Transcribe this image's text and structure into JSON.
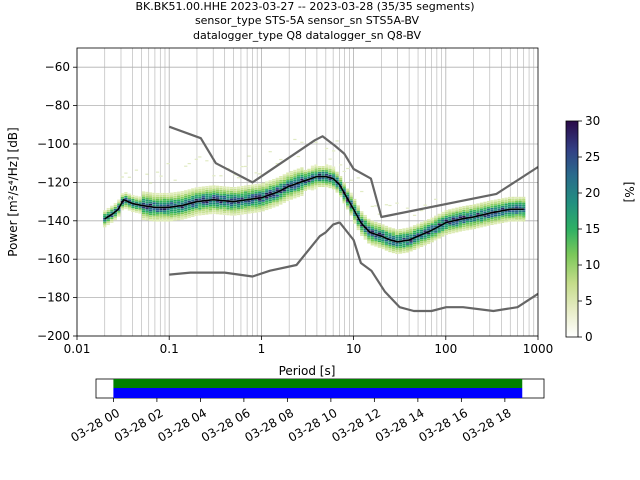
{
  "title": {
    "line1": "BK.BK51.00.HHE   2023-03-27 -- 2023-03-28  (35/35 segments)",
    "line2": "sensor_type STS-5A sensor_sn STS5A-BV",
    "line3": "datalogger_type Q8 datalogger_sn Q8-BV"
  },
  "chart_data": [
    {
      "type": "heatmap",
      "xlabel": "Period [s]",
      "ylabel": "Power [m²/s⁴/Hz] [dB]",
      "xscale": "log",
      "xlim": [
        0.01,
        1000
      ],
      "ylim": [
        -200,
        -50
      ],
      "grid": true,
      "x_tick_labels": [
        "0.01",
        "0.1",
        "1",
        "10",
        "100",
        "1000"
      ],
      "x_ticks": [
        0.01,
        0.1,
        1,
        10,
        100,
        1000
      ],
      "y_ticks": [
        -200,
        -180,
        -160,
        -140,
        -120,
        -100,
        -80,
        -60
      ],
      "y_tick_labels": [
        "−200",
        "−180",
        "−160",
        "−140",
        "−120",
        "−100",
        "−80",
        "−60"
      ],
      "colorbar": {
        "label": "[%]",
        "min": 0,
        "max": 30,
        "ticks": [
          0,
          5,
          10,
          15,
          20,
          25,
          30
        ]
      },
      "series": [
        {
          "role": "mode",
          "color": "#000000",
          "points": [
            [
              0.02,
              -139
            ],
            [
              0.025,
              -136
            ],
            [
              0.028,
              -134
            ],
            [
              0.032,
              -129
            ],
            [
              0.04,
              -131
            ],
            [
              0.05,
              -132
            ],
            [
              0.07,
              -133
            ],
            [
              0.1,
              -133
            ],
            [
              0.14,
              -132
            ],
            [
              0.2,
              -130
            ],
            [
              0.3,
              -129
            ],
            [
              0.5,
              -130
            ],
            [
              0.7,
              -129
            ],
            [
              1,
              -128
            ],
            [
              1.5,
              -125
            ],
            [
              2,
              -122
            ],
            [
              3,
              -119
            ],
            [
              4,
              -117
            ],
            [
              5,
              -117
            ],
            [
              6,
              -118
            ],
            [
              7,
              -121
            ],
            [
              8,
              -126
            ],
            [
              10,
              -134
            ],
            [
              12,
              -141
            ],
            [
              15,
              -146
            ],
            [
              20,
              -148
            ],
            [
              25,
              -150
            ],
            [
              30,
              -151
            ],
            [
              40,
              -150
            ],
            [
              50,
              -148
            ],
            [
              70,
              -145
            ],
            [
              100,
              -141
            ],
            [
              150,
              -139
            ],
            [
              200,
              -138
            ],
            [
              300,
              -136
            ],
            [
              500,
              -134
            ],
            [
              700,
              -134
            ]
          ]
        },
        {
          "role": "new-high-noise-model",
          "color": "#666666",
          "points": [
            [
              0.1,
              -91
            ],
            [
              0.22,
              -97
            ],
            [
              0.32,
              -110
            ],
            [
              0.8,
              -120
            ],
            [
              3.8,
              -98
            ],
            [
              4.6,
              -96
            ],
            [
              6.3,
              -101
            ],
            [
              7.9,
              -105
            ],
            [
              10,
              -113
            ],
            [
              15.4,
              -118
            ],
            [
              20,
              -138
            ],
            [
              354,
              -126
            ],
            [
              1000,
              -112
            ]
          ]
        },
        {
          "role": "new-low-noise-model",
          "color": "#666666",
          "points": [
            [
              0.1,
              -168
            ],
            [
              0.17,
              -167
            ],
            [
              0.4,
              -167
            ],
            [
              0.8,
              -169
            ],
            [
              1.24,
              -166
            ],
            [
              2.4,
              -163
            ],
            [
              4.3,
              -148
            ],
            [
              5,
              -146
            ],
            [
              6,
              -142
            ],
            [
              6.9,
              -141
            ],
            [
              7.1,
              -141
            ],
            [
              10,
              -150
            ],
            [
              12,
              -162
            ],
            [
              15.6,
              -166
            ],
            [
              21.9,
              -177
            ],
            [
              31.6,
              -185
            ],
            [
              45,
              -187
            ],
            [
              70,
              -187
            ],
            [
              101,
              -185
            ],
            [
              154,
              -185
            ],
            [
              328,
              -187
            ],
            [
              600,
              -185
            ],
            [
              1000,
              -178
            ]
          ]
        }
      ]
    },
    {
      "type": "bar",
      "role": "data-coverage",
      "x_tick_labels": [
        "03-28 00",
        "03-28 02",
        "03-28 04",
        "03-28 06",
        "03-28 08",
        "03-28 10",
        "03-28 12",
        "03-28 14",
        "03-28 16",
        "03-28 18"
      ],
      "series": [
        {
          "color": "#008000",
          "start_hour": 0,
          "end_hour": 18.8
        },
        {
          "color": "#0000ff",
          "start_hour": 0,
          "end_hour": 18.8
        }
      ],
      "xlim": [
        -0.8,
        19.8
      ]
    }
  ]
}
